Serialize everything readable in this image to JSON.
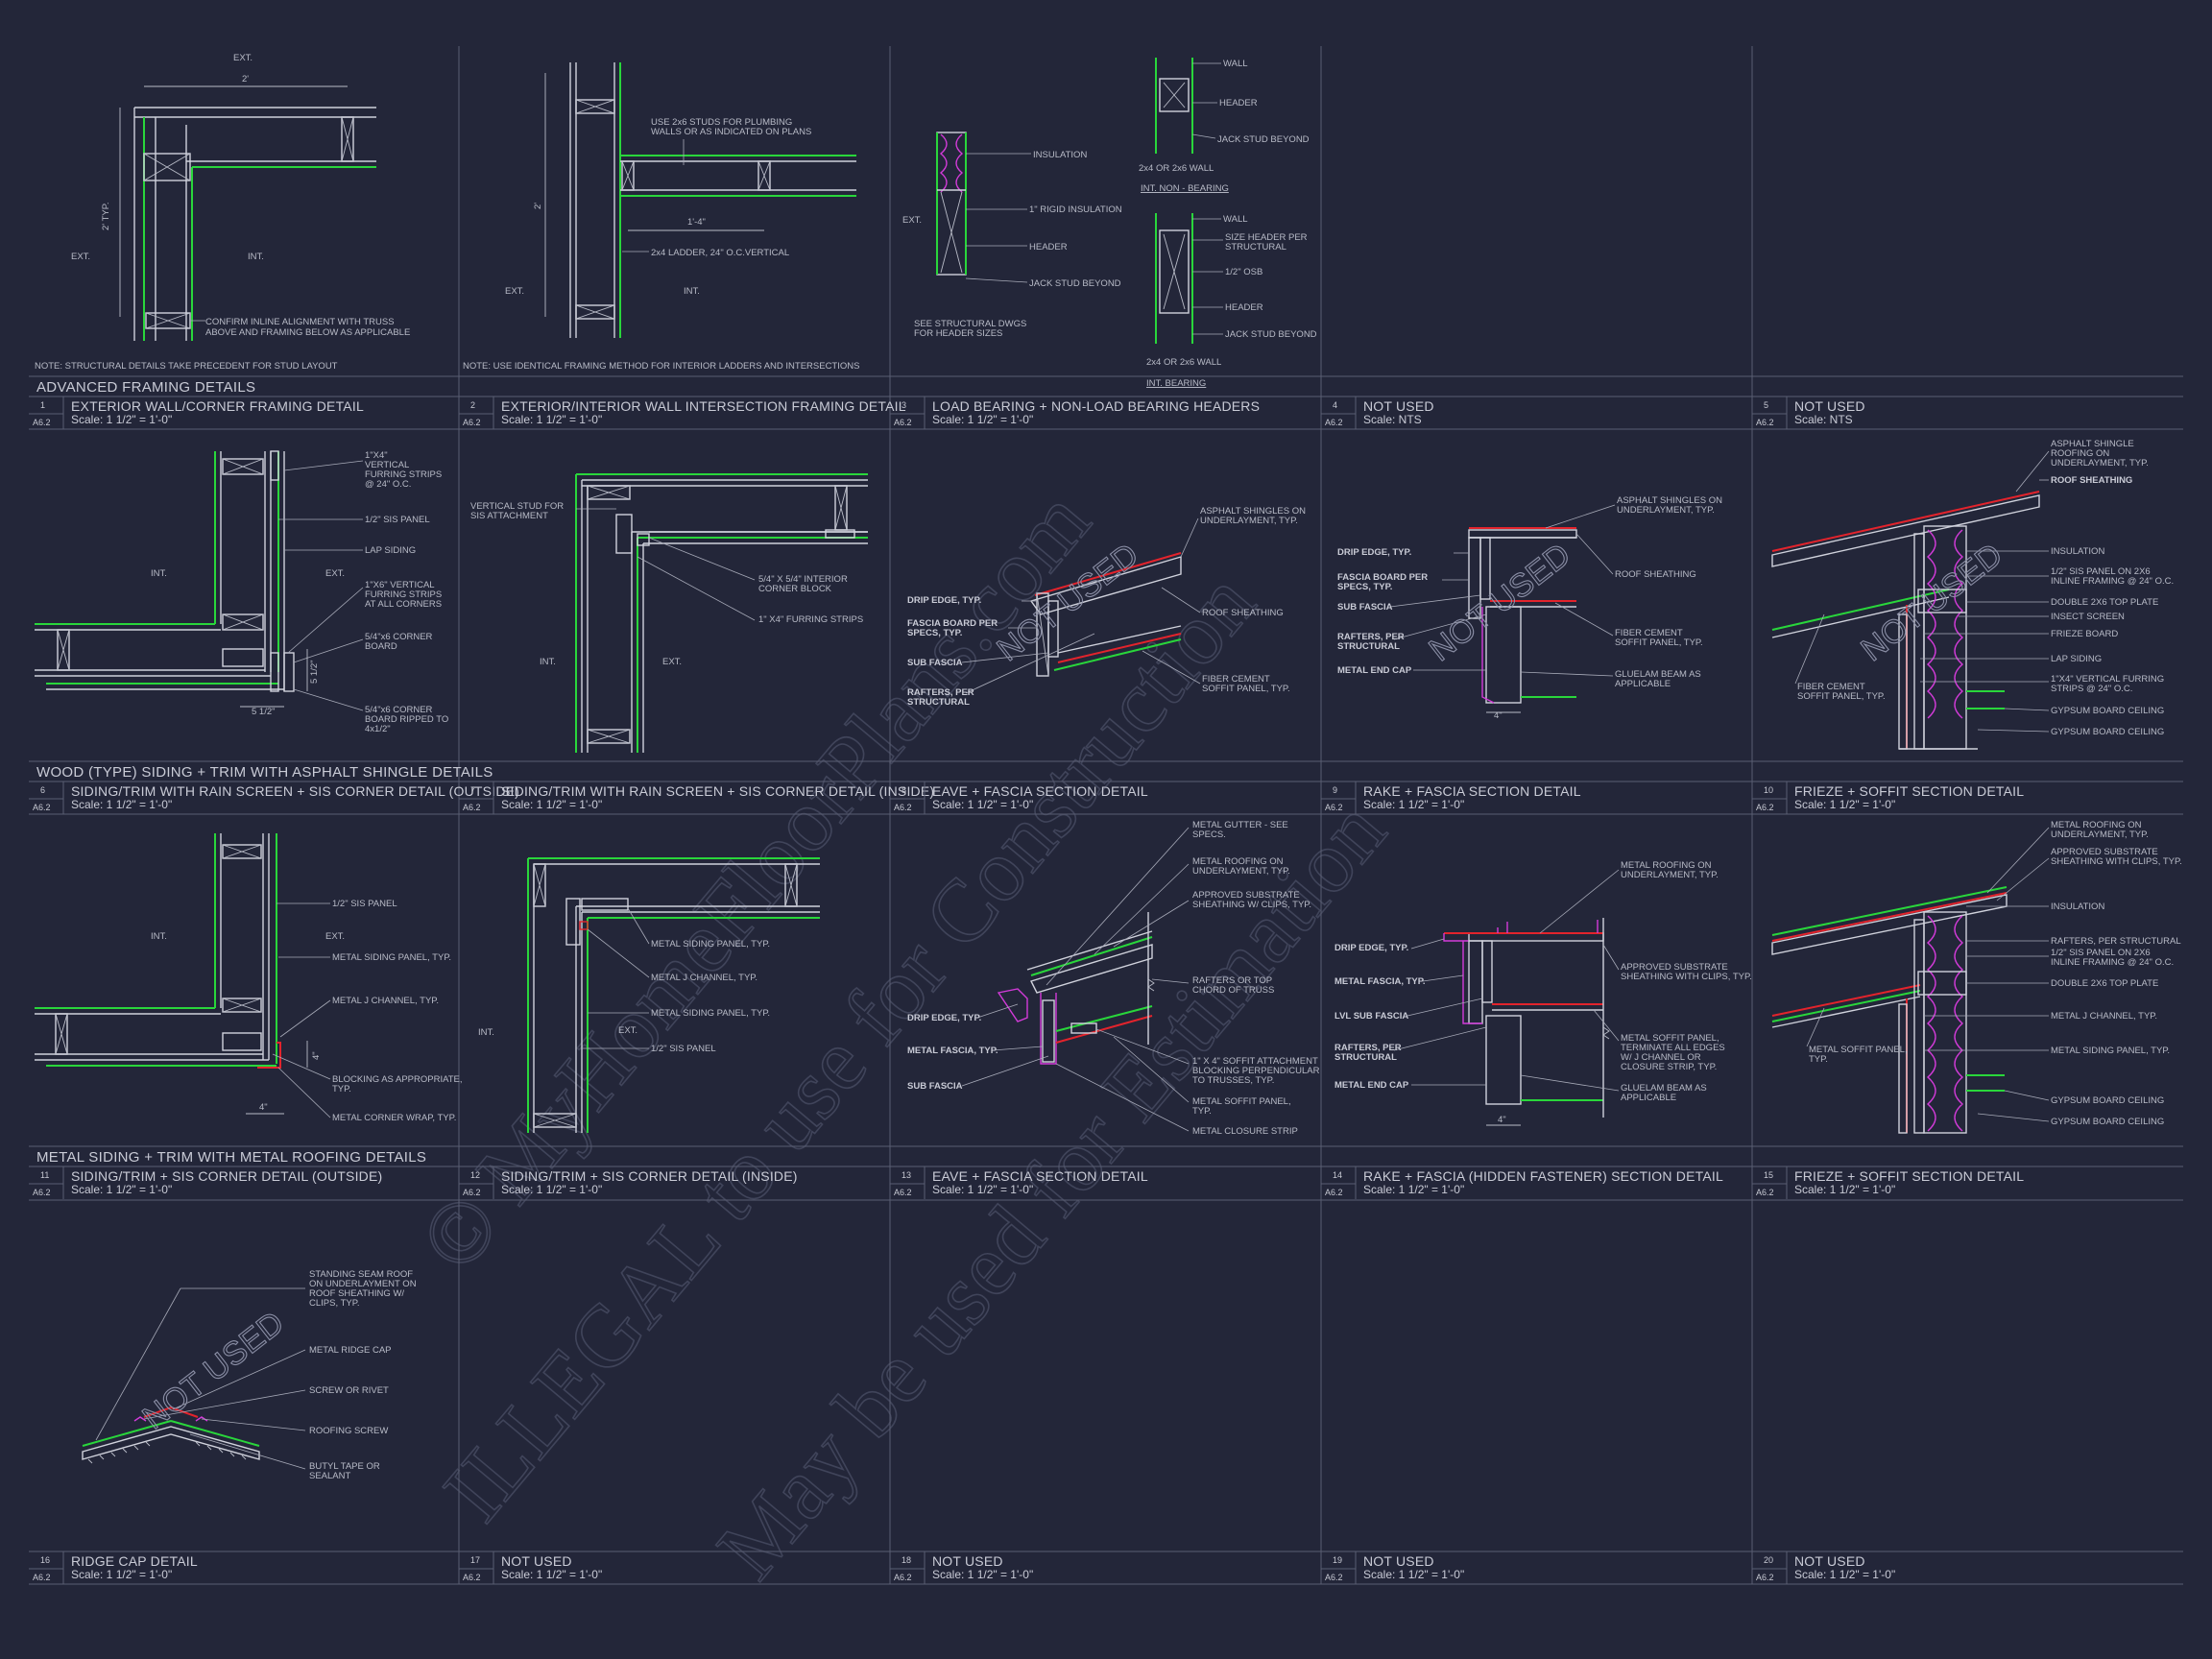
{
  "sections": [
    "ADVANCED FRAMING DETAILS",
    "WOOD (TYPE) SIDING + TRIM WITH ASPHALT SHINGLE DETAILS",
    "METAL SIDING + TRIM WITH METAL ROOFING DETAILS"
  ],
  "sheet_ref": "A6.2",
  "cells": [
    {
      "num": "1",
      "title": "EXTERIOR WALL/CORNER FRAMING DETAIL",
      "scale": "Scale: 1 1/2\" = 1'-0\""
    },
    {
      "num": "2",
      "title": "EXTERIOR/INTERIOR WALL INTERSECTION FRAMING DETAIL",
      "scale": "Scale: 1 1/2\" = 1'-0\""
    },
    {
      "num": "3",
      "title": "LOAD BEARING + NON-LOAD BEARING HEADERS",
      "scale": "Scale: 1 1/2\" = 1'-0\""
    },
    {
      "num": "4",
      "title": "NOT USED",
      "scale": "Scale: NTS"
    },
    {
      "num": "5",
      "title": "NOT USED",
      "scale": "Scale: NTS"
    },
    {
      "num": "6",
      "title": "SIDING/TRIM WITH RAIN SCREEN + SIS CORNER DETAIL (OUTSIDE)",
      "scale": "Scale: 1 1/2\" = 1'-0\""
    },
    {
      "num": "7",
      "title": "SIDING/TRIM WITH RAIN SCREEN + SIS CORNER DETAIL (INSIDE)",
      "scale": "Scale: 1 1/2\" = 1'-0\""
    },
    {
      "num": "8",
      "title": "EAVE + FASCIA SECTION DETAIL",
      "scale": "Scale: 1 1/2\" = 1'-0\""
    },
    {
      "num": "9",
      "title": "RAKE + FASCIA SECTION DETAIL",
      "scale": "Scale: 1 1/2\" = 1'-0\""
    },
    {
      "num": "10",
      "title": "FRIEZE + SOFFIT SECTION DETAIL",
      "scale": "Scale: 1 1/2\" = 1'-0\""
    },
    {
      "num": "11",
      "title": "SIDING/TRIM + SIS CORNER DETAIL (OUTSIDE)",
      "scale": "Scale: 1 1/2\" = 1'-0\""
    },
    {
      "num": "12",
      "title": "SIDING/TRIM + SIS CORNER DETAIL (INSIDE)",
      "scale": "Scale: 1 1/2\" = 1'-0\""
    },
    {
      "num": "13",
      "title": "EAVE + FASCIA SECTION DETAIL",
      "scale": "Scale: 1 1/2\" = 1'-0\""
    },
    {
      "num": "14",
      "title": "RAKE + FASCIA (HIDDEN FASTENER) SECTION DETAIL",
      "scale": "Scale: 1 1/2\" = 1'-0\""
    },
    {
      "num": "15",
      "title": "FRIEZE + SOFFIT SECTION DETAIL",
      "scale": "Scale: 1 1/2\" = 1'-0\""
    },
    {
      "num": "16",
      "title": "RIDGE CAP DETAIL",
      "scale": "Scale: 1 1/2\" = 1'-0\""
    },
    {
      "num": "17",
      "title": "NOT USED",
      "scale": "Scale: 1 1/2\" = 1'-0\""
    },
    {
      "num": "18",
      "title": "NOT USED",
      "scale": "Scale: 1 1/2\" = 1'-0\""
    },
    {
      "num": "19",
      "title": "NOT USED",
      "scale": "Scale: 1 1/2\" = 1'-0\""
    },
    {
      "num": "20",
      "title": "NOT USED",
      "scale": "Scale: 1 1/2\" = 1'-0\""
    }
  ],
  "notes": {
    "d1": "NOTE: STRUCTURAL DETAILS TAKE PRECEDENT FOR STUD LAYOUT",
    "d2": "NOTE: USE IDENTICAL FRAMING METHOD FOR INTERIOR LADDERS AND INTERSECTIONS"
  },
  "labels": {
    "ext": "EXT.",
    "int": "INT.",
    "d1_dim_2": "2'",
    "d1_dim_typ": "2' TYP.",
    "d1_confirm": [
      "CONFIRM INLINE ALIGNMENT WITH TRUSS",
      "ABOVE AND FRAMING BELOW AS APPLICABLE"
    ],
    "d2_studs": [
      "USE 2x6 STUDS FOR PLUMBING",
      "WALLS OR AS INDICATED ON PLANS"
    ],
    "d2_dim": "1'-4\"",
    "d2_dim2": "2'",
    "d2_ladder": "2x4 LADDER, 24\" O.C.VERTICAL",
    "d3_insulation": "INSULATION",
    "d3_rigid": "1\" RIGID INSULATION",
    "d3_header": "HEADER",
    "d3_jack": "JACK STUD BEYOND",
    "d3_see": [
      "SEE STRUCTURAL DWGS",
      "FOR HEADER SIZES"
    ],
    "d3_wall": "WALL",
    "d3_wall_size": "2x4 OR 2x6 WALL",
    "d3_nonbearing": "INT. NON - BEARING",
    "d3_size_header": [
      "SIZE HEADER PER",
      "STRUCTURAL"
    ],
    "d3_osb": "1/2\" OSB",
    "d3_bearing": "INT. BEARING",
    "d6_furring": [
      "1\"X4\"",
      "VERTICAL",
      "FURRING STRIPS",
      "@ 24\" O.C."
    ],
    "d6_sis": "1/2\" SIS PANEL",
    "d6_lap": "LAP SIDING",
    "d6_furring6": [
      "1\"X6\" VERTICAL",
      "FURRING STRIPS",
      "AT ALL CORNERS"
    ],
    "d6_corner_board": [
      "5/4\"x6 CORNER",
      "BOARD"
    ],
    "d6_corner_ripped": [
      "5/4\"x6 CORNER",
      "BOARD RIPPED TO",
      "4x1/2\""
    ],
    "d6_dim": "5 1/2\"",
    "d7_vertical": [
      "VERTICAL STUD FOR",
      "SIS ATTACHMENT"
    ],
    "d7_block": [
      "5/4\" X 5/4\" INTERIOR",
      "CORNER BLOCK"
    ],
    "d7_furring": "1\" X4\" FURRING STRIPS",
    "d8_asphalt": [
      "ASPHALT SHINGLES ON",
      "UNDERLAYMENT, TYP."
    ],
    "d8_drip": "DRIP EDGE, TYP.",
    "d8_fascia": [
      "FASCIA BOARD PER",
      "SPECS, TYP."
    ],
    "d8_sub": "SUB FASCIA",
    "d8_rafters": [
      "RAFTERS, PER",
      "STRUCTURAL"
    ],
    "d8_roof_sheathing": "ROOF SHEATHING",
    "d8_fiber": [
      "FIBER CEMENT",
      "SOFFIT PANEL, TYP."
    ],
    "d9_end_cap": "METAL END CAP",
    "d9_glulam": [
      "GLUELAM BEAM AS",
      "APPLICABLE"
    ],
    "d9_dim": "4\"",
    "d10_asphalt": [
      "ASPHALT SHINGLE",
      "ROOFING ON",
      "UNDERLAYMENT, TYP."
    ],
    "d10_sheathing": "ROOF SHEATHING",
    "d10_insulation": "INSULATION",
    "d10_sis": [
      "1/2\" SIS PANEL ON 2X6",
      "INLINE FRAMING @ 24\" O.C."
    ],
    "d10_top_plate": "DOUBLE 2X6 TOP PLATE",
    "d10_insect": "INSECT SCREEN",
    "d10_frieze": "FRIEZE BOARD",
    "d10_lap": "LAP SIDING",
    "d10_furring": [
      "1\"X4\" VERTICAL FURRING",
      "STRIPS @ 24\" O.C."
    ],
    "d10_gyp": "GYPSUM BOARD CEILING",
    "d10_fiber": [
      "FIBER CEMENT",
      "SOFFIT PANEL, TYP."
    ],
    "d11_metal_siding": "METAL SIDING PANEL, TYP.",
    "d11_jchannel": "METAL J CHANNEL, TYP.",
    "d11_blocking": [
      "BLOCKING AS APPROPRIATE,",
      "TYP."
    ],
    "d11_corner_wrap": "METAL CORNER WRAP, TYP.",
    "d11_dim": "4\"",
    "d13_gutter": [
      "METAL GUTTER - SEE",
      "SPECS."
    ],
    "d13_roofing": [
      "METAL ROOFING ON",
      "UNDERLAYMENT, TYP."
    ],
    "d13_substrate": [
      "APPROVED SUBSTRATE",
      "SHEATHING W/ CLIPS, TYP."
    ],
    "d13_rafters": [
      "RAFTERS OR TOP",
      "CHORD OF TRUSS"
    ],
    "d13_metal_fascia": "METAL FASCIA, TYP.",
    "d13_soffit_attach": [
      "1\" X 4\" SOFFIT ATTACHMENT",
      "BLOCKING PERPENDICULAR",
      "TO TRUSSES, TYP."
    ],
    "d13_soffit": [
      "METAL SOFFIT PANEL,",
      "TYP."
    ],
    "d13_closure": "METAL CLOSURE STRIP",
    "d14_substrate": [
      "APPROVED SUBSTRATE",
      "SHEATHING WITH CLIPS, TYP."
    ],
    "d14_lvl": "LVL SUB FASCIA",
    "d14_soffit": [
      "METAL SOFFIT PANEL,",
      "TERMINATE ALL EDGES",
      "W/ J CHANNEL OR",
      "CLOSURE STRIP, TYP."
    ],
    "d15_roofing": [
      "METAL ROOFING ON",
      "UNDERLAYMENT, TYP."
    ],
    "d15_substrate": [
      "APPROVED SUBSTRATE",
      "SHEATHING WITH CLIPS, TYP."
    ],
    "d15_rafters": "RAFTERS, PER STRUCTURAL",
    "d15_soffit": [
      "METAL SOFFIT PANEL,",
      "TYP."
    ],
    "d16_standing": [
      "STANDING SEAM ROOF",
      "ON UNDERLAYMENT ON",
      "ROOF SHEATHING W/",
      "CLIPS, TYP."
    ],
    "d16_ridge": "METAL RIDGE CAP",
    "d16_screw": "SCREW OR RIVET",
    "d16_roofing_screw": "ROOFING SCREW",
    "d16_butyl": [
      "BUTYL TAPE OR",
      "SEALANT"
    ]
  },
  "stamps": [
    "NOT USED",
    "NOT USED",
    "NOT USED",
    "NOT USED",
    "NOT USED"
  ],
  "watermark": [
    "© MyHomeFloorPlans.com",
    "ILLEGAL to use for Construction",
    "May be used for Estimation"
  ],
  "colors": {
    "background": "#232639",
    "linework": "#d0d2dc",
    "green": "#29d63b",
    "red": "#e3232c",
    "magenta": "#d33bd9",
    "grid": "#5a5e73"
  }
}
